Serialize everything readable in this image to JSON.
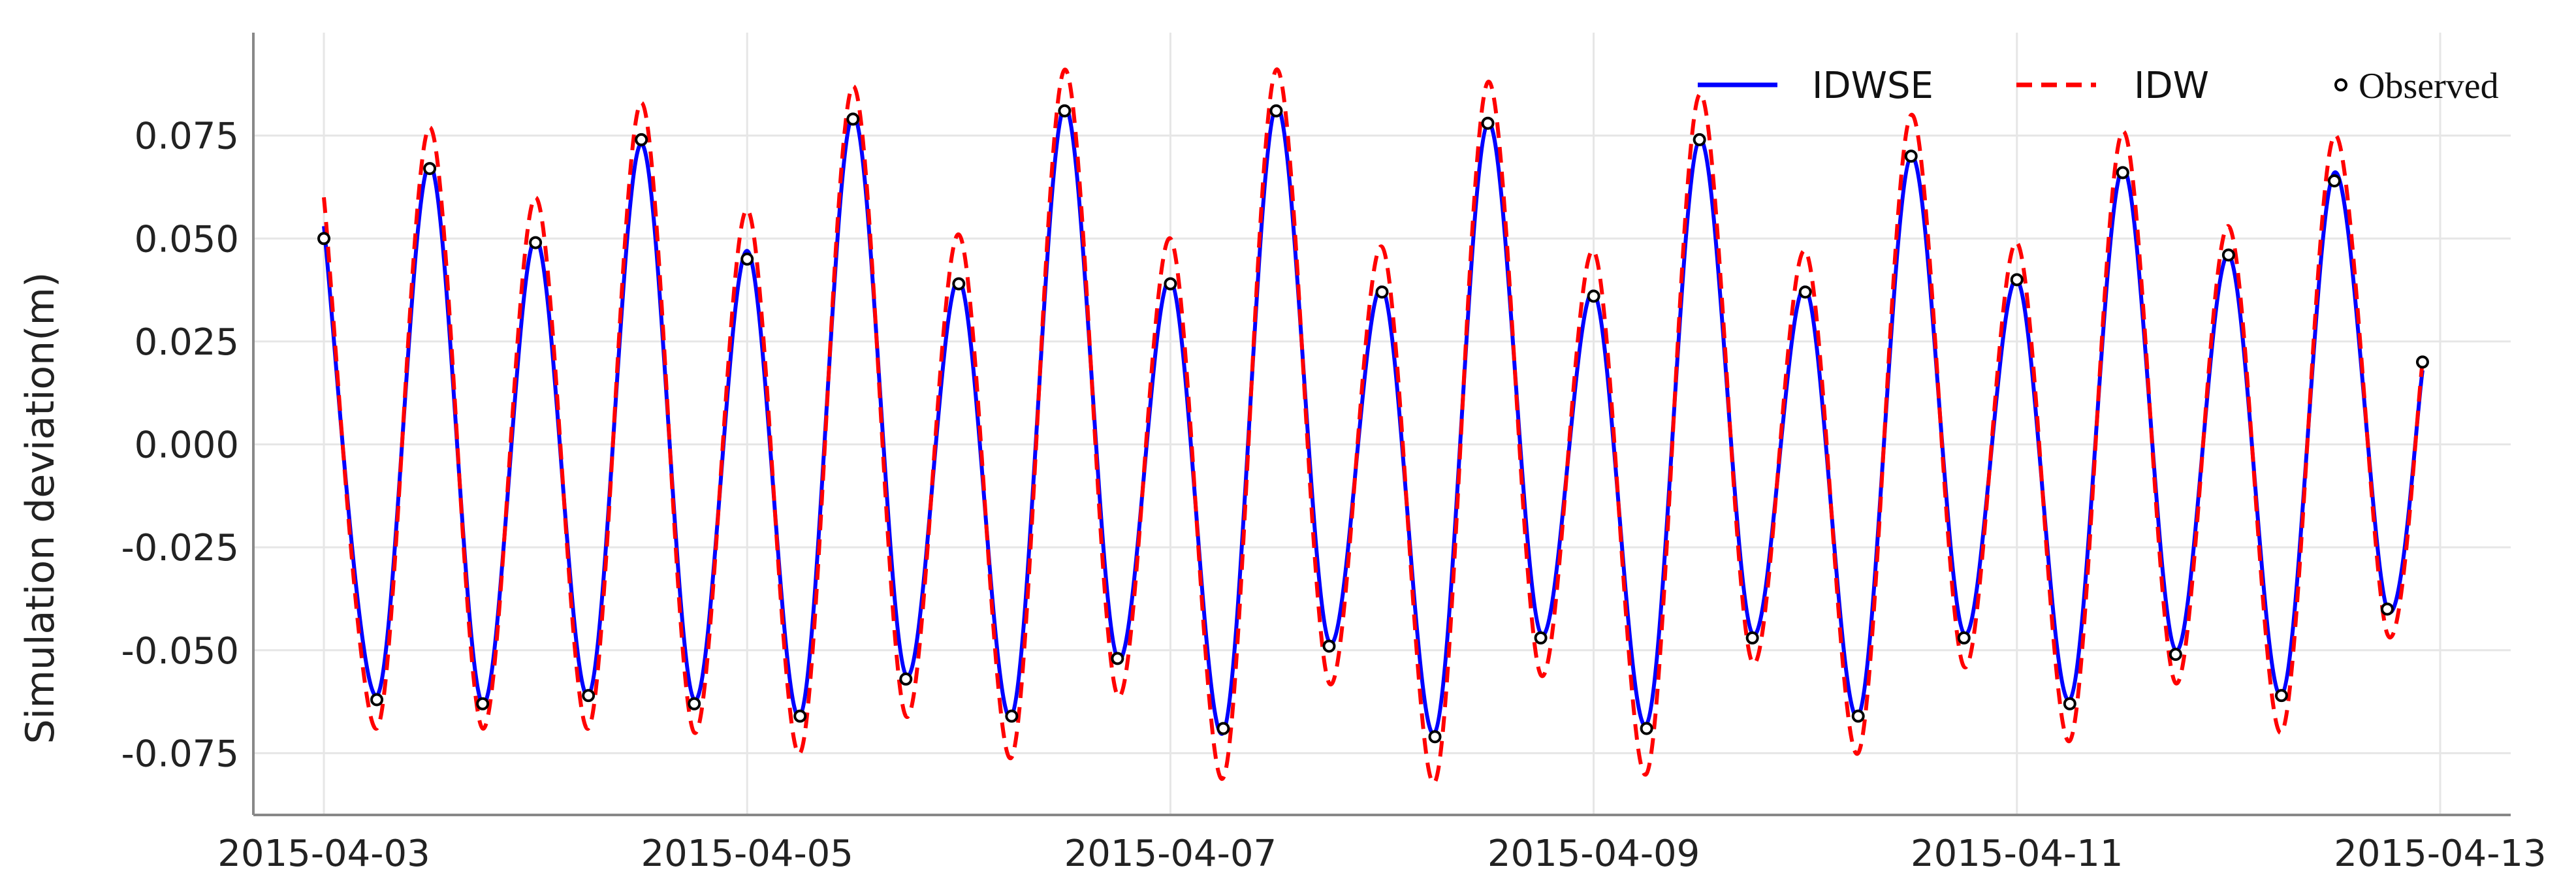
{
  "chart_data": {
    "type": "line",
    "title": "",
    "xlabel": "",
    "ylabel": "Simulation deviation(m)",
    "xlim": [
      "2015-04-02T16:00",
      "2015-04-13T08:00"
    ],
    "ylim": [
      -0.09,
      0.1
    ],
    "x_ticks": [
      "2015-04-03",
      "2015-04-05",
      "2015-04-07",
      "2015-04-09",
      "2015-04-11",
      "2015-04-13"
    ],
    "y_ticks": [
      "0.075",
      "0.050",
      "0.025",
      "0.000",
      "-0.025",
      "-0.050",
      "-0.075"
    ],
    "grid": true,
    "legend_position": "top-right",
    "colors": {
      "IDWSE": "#0000ff",
      "IDW": "#ff0000",
      "Observed": "#000000",
      "grid": "#e6e6e6",
      "axis": "#888888"
    },
    "legend": [
      {
        "label": "IDWSE",
        "style": "solid-line"
      },
      {
        "label": "IDW",
        "style": "dashed-line"
      },
      {
        "label": "Observed",
        "style": "open-circle"
      }
    ],
    "series": [
      {
        "name": "IDWSE",
        "x": [
          "2015-04-03T00:00",
          "2015-04-03T06:00",
          "2015-04-03T12:00",
          "2015-04-03T18:00",
          "2015-04-04T00:00",
          "2015-04-04T06:00",
          "2015-04-04T12:00",
          "2015-04-04T18:00",
          "2015-04-05T00:00",
          "2015-04-05T06:00",
          "2015-04-05T12:00",
          "2015-04-05T18:00",
          "2015-04-06T00:00",
          "2015-04-06T06:00",
          "2015-04-06T12:00",
          "2015-04-06T18:00",
          "2015-04-07T00:00",
          "2015-04-07T06:00",
          "2015-04-07T12:00",
          "2015-04-07T18:00",
          "2015-04-08T00:00",
          "2015-04-08T06:00",
          "2015-04-08T12:00",
          "2015-04-08T18:00",
          "2015-04-09T00:00",
          "2015-04-09T06:00",
          "2015-04-09T12:00",
          "2015-04-09T18:00",
          "2015-04-10T00:00",
          "2015-04-10T06:00",
          "2015-04-10T12:00",
          "2015-04-10T18:00",
          "2015-04-11T00:00",
          "2015-04-11T06:00",
          "2015-04-11T12:00",
          "2015-04-11T18:00",
          "2015-04-12T00:00",
          "2015-04-12T06:00",
          "2015-04-12T12:00",
          "2015-04-12T18:00",
          "2015-04-12T22:00"
        ],
        "y": [
          0.053,
          -0.061,
          0.068,
          -0.063,
          0.05,
          -0.061,
          0.073,
          -0.062,
          0.047,
          -0.066,
          0.08,
          -0.056,
          0.04,
          -0.066,
          0.082,
          -0.052,
          0.04,
          -0.07,
          0.082,
          -0.048,
          0.038,
          -0.07,
          0.078,
          -0.046,
          0.037,
          -0.068,
          0.074,
          -0.046,
          0.038,
          -0.066,
          0.07,
          -0.046,
          0.04,
          -0.062,
          0.067,
          -0.05,
          0.046,
          -0.061,
          0.066,
          -0.04,
          0.018
        ]
      },
      {
        "name": "IDW",
        "x": [
          "2015-04-03T00:00",
          "2015-04-03T06:00",
          "2015-04-03T12:00",
          "2015-04-03T18:00",
          "2015-04-04T00:00",
          "2015-04-04T06:00",
          "2015-04-04T12:00",
          "2015-04-04T18:00",
          "2015-04-05T00:00",
          "2015-04-05T06:00",
          "2015-04-05T12:00",
          "2015-04-05T18:00",
          "2015-04-06T00:00",
          "2015-04-06T06:00",
          "2015-04-06T12:00",
          "2015-04-06T18:00",
          "2015-04-07T00:00",
          "2015-04-07T06:00",
          "2015-04-07T12:00",
          "2015-04-07T18:00",
          "2015-04-08T00:00",
          "2015-04-08T06:00",
          "2015-04-08T12:00",
          "2015-04-08T18:00",
          "2015-04-09T00:00",
          "2015-04-09T06:00",
          "2015-04-09T12:00",
          "2015-04-09T18:00",
          "2015-04-10T00:00",
          "2015-04-10T06:00",
          "2015-04-10T12:00",
          "2015-04-10T18:00",
          "2015-04-11T00:00",
          "2015-04-11T06:00",
          "2015-04-11T12:00",
          "2015-04-11T18:00",
          "2015-04-12T00:00",
          "2015-04-12T06:00",
          "2015-04-12T12:00",
          "2015-04-12T18:00",
          "2015-04-12T22:00"
        ],
        "y": [
          0.06,
          -0.069,
          0.077,
          -0.069,
          0.06,
          -0.069,
          0.083,
          -0.07,
          0.057,
          -0.075,
          0.087,
          -0.066,
          0.051,
          -0.076,
          0.091,
          -0.061,
          0.05,
          -0.081,
          0.091,
          -0.058,
          0.048,
          -0.082,
          0.088,
          -0.056,
          0.047,
          -0.08,
          0.085,
          -0.053,
          0.047,
          -0.075,
          0.08,
          -0.054,
          0.049,
          -0.072,
          0.076,
          -0.058,
          0.053,
          -0.07,
          0.075,
          -0.046,
          0.02
        ]
      },
      {
        "name": "Observed",
        "x": [
          "2015-04-03T00:00",
          "2015-04-03T06:00",
          "2015-04-03T12:00",
          "2015-04-03T18:00",
          "2015-04-04T00:00",
          "2015-04-04T06:00",
          "2015-04-04T12:00",
          "2015-04-04T18:00",
          "2015-04-05T00:00",
          "2015-04-05T06:00",
          "2015-04-05T12:00",
          "2015-04-05T18:00",
          "2015-04-06T00:00",
          "2015-04-06T06:00",
          "2015-04-06T12:00",
          "2015-04-06T18:00",
          "2015-04-07T00:00",
          "2015-04-07T06:00",
          "2015-04-07T12:00",
          "2015-04-07T18:00",
          "2015-04-08T00:00",
          "2015-04-08T06:00",
          "2015-04-08T12:00",
          "2015-04-08T18:00",
          "2015-04-09T00:00",
          "2015-04-09T06:00",
          "2015-04-09T12:00",
          "2015-04-09T18:00",
          "2015-04-10T00:00",
          "2015-04-10T06:00",
          "2015-04-10T12:00",
          "2015-04-10T18:00",
          "2015-04-11T00:00",
          "2015-04-11T06:00",
          "2015-04-11T12:00",
          "2015-04-11T18:00",
          "2015-04-12T00:00",
          "2015-04-12T06:00",
          "2015-04-12T12:00",
          "2015-04-12T18:00",
          "2015-04-12T22:00"
        ],
        "y": [
          0.05,
          -0.062,
          0.067,
          -0.063,
          0.049,
          -0.061,
          0.074,
          -0.063,
          0.045,
          -0.066,
          0.079,
          -0.057,
          0.039,
          -0.066,
          0.081,
          -0.052,
          0.039,
          -0.069,
          0.081,
          -0.049,
          0.037,
          -0.071,
          0.078,
          -0.047,
          0.036,
          -0.069,
          0.074,
          -0.047,
          0.037,
          -0.066,
          0.07,
          -0.047,
          0.04,
          -0.063,
          0.066,
          -0.051,
          0.046,
          -0.061,
          0.064,
          -0.04,
          0.02
        ]
      }
    ]
  }
}
